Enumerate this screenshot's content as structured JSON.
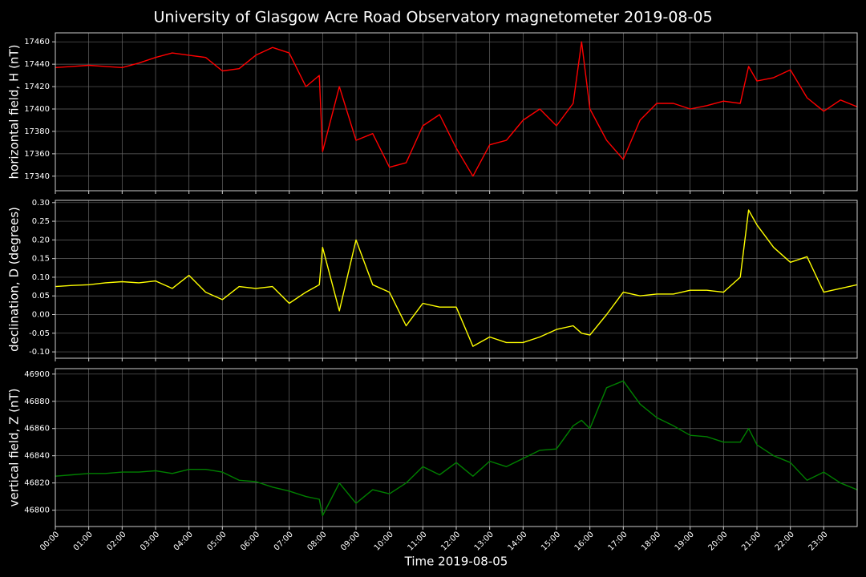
{
  "chart_data": [
    {
      "type": "line",
      "title": "University of Glasgow Acre Road Observatory magnetometer 2019-08-05",
      "ylabel": "horizontal field, H (nT)",
      "x": [
        0,
        0.5,
        1,
        1.5,
        2,
        2.5,
        3,
        3.5,
        4,
        4.5,
        5,
        5.5,
        6,
        6.5,
        7,
        7.5,
        7.9,
        8,
        8.5,
        9,
        9.5,
        10,
        10.5,
        11,
        11.5,
        12,
        12.5,
        13,
        13.5,
        14,
        14.5,
        15,
        15.5,
        15.75,
        16,
        16.5,
        17,
        17.5,
        18,
        18.5,
        19,
        19.5,
        20,
        20.5,
        20.75,
        21,
        21.5,
        22,
        22.5,
        23,
        23.5,
        24
      ],
      "series": [
        {
          "color": "#ff0000",
          "values": [
            17437,
            17438,
            17439,
            17438,
            17437,
            17441,
            17446,
            17450,
            17448,
            17446,
            17434,
            17436,
            17448,
            17455,
            17450,
            17420,
            17430,
            17362,
            17420,
            17372,
            17378,
            17348,
            17352,
            17385,
            17395,
            17365,
            17340,
            17368,
            17372,
            17390,
            17400,
            17385,
            17405,
            17460,
            17400,
            17372,
            17355,
            17390,
            17405,
            17405,
            17400,
            17403,
            17407,
            17405,
            17438,
            17425,
            17428,
            17435,
            17410,
            17398,
            17408,
            17402
          ]
        }
      ],
      "xlim": [
        0,
        24
      ],
      "xticks": [
        0,
        1,
        2,
        3,
        4,
        5,
        6,
        7,
        8,
        9,
        10,
        11,
        12,
        13,
        14,
        15,
        16,
        17,
        18,
        19,
        20,
        21,
        22,
        23
      ],
      "ylim": [
        17327,
        17468
      ],
      "yticks": [
        17340,
        17360,
        17380,
        17400,
        17420,
        17440,
        17460
      ],
      "grid": true
    },
    {
      "type": "line",
      "ylabel": "declination, D (degrees)",
      "x": [
        0,
        0.5,
        1,
        1.5,
        2,
        2.5,
        3,
        3.5,
        4,
        4.5,
        5,
        5.5,
        6,
        6.5,
        7,
        7.5,
        7.9,
        8,
        8.5,
        9,
        9.5,
        10,
        10.5,
        11,
        11.5,
        12,
        12.5,
        13,
        13.5,
        14,
        14.5,
        15,
        15.5,
        15.75,
        16,
        16.5,
        17,
        17.5,
        18,
        18.5,
        19,
        19.5,
        20,
        20.5,
        20.75,
        21,
        21.5,
        22,
        22.5,
        23,
        23.5,
        24
      ],
      "series": [
        {
          "color": "#ffff00",
          "values": [
            0.075,
            0.078,
            0.08,
            0.085,
            0.088,
            0.085,
            0.09,
            0.07,
            0.105,
            0.06,
            0.04,
            0.075,
            0.07,
            0.075,
            0.03,
            0.06,
            0.08,
            0.18,
            0.01,
            0.2,
            0.08,
            0.06,
            -0.03,
            0.03,
            0.02,
            0.02,
            -0.085,
            -0.06,
            -0.075,
            -0.075,
            -0.06,
            -0.04,
            -0.03,
            -0.05,
            -0.055,
            0.0,
            0.06,
            0.05,
            0.055,
            0.055,
            0.065,
            0.065,
            0.06,
            0.1,
            0.28,
            0.24,
            0.18,
            0.14,
            0.155,
            0.06,
            0.07,
            0.08
          ]
        }
      ],
      "xlim": [
        0,
        24
      ],
      "xticks": [
        0,
        1,
        2,
        3,
        4,
        5,
        6,
        7,
        8,
        9,
        10,
        11,
        12,
        13,
        14,
        15,
        16,
        17,
        18,
        19,
        20,
        21,
        22,
        23
      ],
      "ylim": [
        -0.117,
        0.306
      ],
      "yticks": [
        {
          "value": -0.1,
          "label": "-0.10"
        },
        -0.05,
        {
          "value": 0,
          "label": "0.00"
        },
        0.05,
        {
          "value": 0.1,
          "label": "0.10"
        },
        0.15,
        {
          "value": 0.2,
          "label": "0.20"
        },
        0.25,
        {
          "value": 0.3,
          "label": "0.30"
        }
      ],
      "grid": true
    },
    {
      "type": "line",
      "ylabel": "vertical field, Z (nT)",
      "xlabel": "Time 2019-08-05",
      "x": [
        0,
        0.5,
        1,
        1.5,
        2,
        2.5,
        3,
        3.5,
        4,
        4.5,
        5,
        5.5,
        6,
        6.5,
        7,
        7.5,
        7.9,
        8,
        8.5,
        9,
        9.5,
        10,
        10.5,
        11,
        11.5,
        12,
        12.5,
        13,
        13.5,
        14,
        14.5,
        15,
        15.5,
        15.75,
        16,
        16.5,
        17,
        17.5,
        18,
        18.5,
        19,
        19.5,
        20,
        20.5,
        20.75,
        21,
        21.5,
        22,
        22.5,
        23,
        23.5,
        24
      ],
      "series": [
        {
          "color": "#008000",
          "values": [
            46825,
            46826,
            46827,
            46827,
            46828,
            46828,
            46829,
            46827,
            46830,
            46830,
            46828,
            46822,
            46821,
            46817,
            46814,
            46810,
            46808,
            46796,
            46820,
            46805,
            46815,
            46812,
            46820,
            46832,
            46826,
            46835,
            46825,
            46836,
            46832,
            46838,
            46844,
            46845,
            46862,
            46866,
            46860,
            46890,
            46895,
            46878,
            46868,
            46862,
            46855,
            46854,
            46850,
            46850,
            46860,
            46848,
            46840,
            46835,
            46822,
            46828,
            46820,
            46815
          ]
        }
      ],
      "xlim": [
        0,
        24
      ],
      "xticks": [
        {
          "value": 0,
          "label": "00:00"
        },
        {
          "value": 1,
          "label": "01:00"
        },
        {
          "value": 2,
          "label": "02:00"
        },
        {
          "value": 3,
          "label": "03:00"
        },
        {
          "value": 4,
          "label": "04:00"
        },
        {
          "value": 5,
          "label": "05:00"
        },
        {
          "value": 6,
          "label": "06:00"
        },
        {
          "value": 7,
          "label": "07:00"
        },
        {
          "value": 8,
          "label": "08:00"
        },
        {
          "value": 9,
          "label": "09:00"
        },
        {
          "value": 10,
          "label": "10:00"
        },
        {
          "value": 11,
          "label": "11:00"
        },
        {
          "value": 12,
          "label": "12:00"
        },
        {
          "value": 13,
          "label": "13:00"
        },
        {
          "value": 14,
          "label": "14:00"
        },
        {
          "value": 15,
          "label": "15:00"
        },
        {
          "value": 16,
          "label": "16:00"
        },
        {
          "value": 17,
          "label": "17:00"
        },
        {
          "value": 18,
          "label": "18:00"
        },
        {
          "value": 19,
          "label": "19:00"
        },
        {
          "value": 20,
          "label": "20:00"
        },
        {
          "value": 21,
          "label": "21:00"
        },
        {
          "value": 22,
          "label": "22:00"
        },
        {
          "value": 23,
          "label": "23:00"
        }
      ],
      "ylim": [
        46788,
        46904
      ],
      "yticks": [
        46800,
        46820,
        46840,
        46860,
        46880,
        46900
      ],
      "grid": true
    }
  ]
}
